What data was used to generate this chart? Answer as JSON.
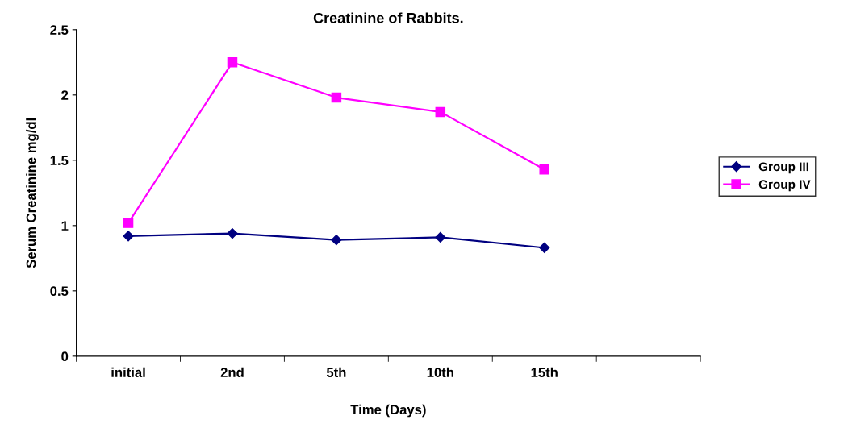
{
  "chart_data": {
    "type": "line",
    "title": "Creatinine of Rabbits.",
    "xlabel": "Time (Days)",
    "ylabel": "Serum Creatinine mg/dl",
    "categories": [
      "initial",
      "2nd",
      "5th",
      "10th",
      "15th",
      null
    ],
    "series": [
      {
        "name": "Group III",
        "color": "#000080",
        "marker": "diamond",
        "values": [
          0.92,
          0.94,
          0.89,
          0.91,
          0.83,
          null
        ]
      },
      {
        "name": "Group IV",
        "color": "#ff00ff",
        "marker": "square",
        "values": [
          1.02,
          2.25,
          1.98,
          1.87,
          1.43,
          null
        ]
      }
    ],
    "ylim": [
      0,
      2.5
    ],
    "yticks": [
      0,
      0.5,
      1,
      1.5,
      2,
      2.5
    ],
    "grid": false,
    "legend": "right"
  }
}
